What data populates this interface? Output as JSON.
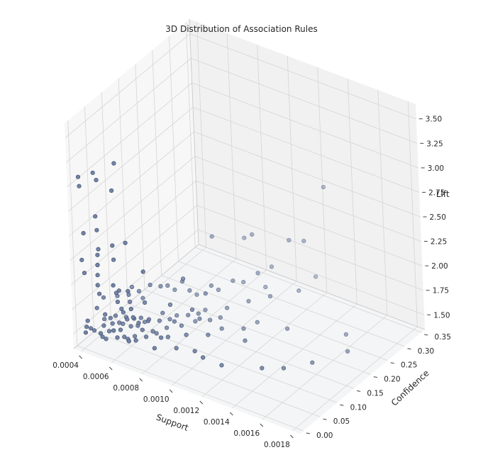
{
  "chart_data": {
    "type": "scatter",
    "title": "3D Distribution of Association Rules",
    "xlabel": "Support",
    "ylabel": "Confidence",
    "zlabel": "Lift",
    "xlim": [
      0.00035,
      0.00185
    ],
    "ylim": [
      -0.01,
      0.36
    ],
    "zlim": [
      1.35,
      3.65
    ],
    "xticks": [
      "0.0004",
      "0.0006",
      "0.0008",
      "0.0010",
      "0.0012",
      "0.0014",
      "0.0016",
      "0.0018"
    ],
    "yticks": [
      "0.00",
      "0.05",
      "0.10",
      "0.15",
      "0.20",
      "0.25",
      "0.30",
      "0.35"
    ],
    "zticks": [
      "1.50",
      "1.75",
      "2.00",
      "2.25",
      "2.50",
      "2.75",
      "3.00",
      "3.25",
      "3.50"
    ],
    "marker_color": "#6d7fa3",
    "points": [
      [
        0.0004,
        0.001,
        3.1
      ],
      [
        0.0004,
        0.003,
        3.0
      ],
      [
        0.0005,
        0.01,
        3.1
      ],
      [
        0.0005,
        0.001,
        3.2
      ],
      [
        0.0006,
        0.02,
        3.3
      ],
      [
        0.0006,
        0.01,
        3.05
      ],
      [
        0.0005,
        0.003,
        2.75
      ],
      [
        0.0005,
        0.006,
        2.6
      ],
      [
        0.0004,
        0.01,
        2.5
      ],
      [
        0.0005,
        0.008,
        2.4
      ],
      [
        0.0006,
        0.006,
        2.5
      ],
      [
        0.0006,
        0.008,
        2.35
      ],
      [
        0.0007,
        0.001,
        2.6
      ],
      [
        0.0004,
        0.002,
        2.25
      ],
      [
        0.0005,
        0.003,
        2.15
      ],
      [
        0.0005,
        0.004,
        2.25
      ],
      [
        0.0005,
        0.005,
        2.35
      ],
      [
        0.0006,
        0.004,
        2.1
      ],
      [
        0.0005,
        0.006,
        1.95
      ],
      [
        0.0005,
        0.002,
        2.05
      ],
      [
        0.0007,
        0.003,
        2.1
      ],
      [
        0.0008,
        0.006,
        2.35
      ],
      [
        0.0004,
        0.008,
        2.1
      ],
      [
        0.0006,
        0.012,
        2.0
      ],
      [
        0.0007,
        0.01,
        1.9
      ],
      [
        0.0006,
        0.015,
        1.9
      ],
      [
        0.0006,
        0.02,
        2.0
      ],
      [
        0.0007,
        0.015,
        1.8
      ],
      [
        0.0006,
        0.025,
        1.8
      ],
      [
        0.0007,
        0.03,
        1.7
      ],
      [
        0.0004,
        0.005,
        1.5
      ],
      [
        0.0004,
        0.008,
        1.55
      ],
      [
        0.0004,
        0.012,
        1.6
      ],
      [
        0.0004,
        0.02,
        1.5
      ],
      [
        0.0004,
        0.03,
        1.45
      ],
      [
        0.0005,
        0.005,
        1.55
      ],
      [
        0.0005,
        0.01,
        1.5
      ],
      [
        0.0005,
        0.015,
        1.6
      ],
      [
        0.0005,
        0.02,
        1.45
      ],
      [
        0.0005,
        0.03,
        1.5
      ],
      [
        0.0005,
        0.04,
        1.55
      ],
      [
        0.0005,
        0.05,
        1.6
      ],
      [
        0.0005,
        0.06,
        1.5
      ],
      [
        0.0006,
        0.01,
        1.55
      ],
      [
        0.0006,
        0.02,
        1.6
      ],
      [
        0.0006,
        0.03,
        1.5
      ],
      [
        0.0006,
        0.04,
        1.45
      ],
      [
        0.0006,
        0.05,
        1.55
      ],
      [
        0.0006,
        0.06,
        1.6
      ],
      [
        0.0006,
        0.07,
        1.5
      ],
      [
        0.0006,
        0.08,
        1.55
      ],
      [
        0.0007,
        0.02,
        1.55
      ],
      [
        0.0007,
        0.04,
        1.6
      ],
      [
        0.0007,
        0.05,
        1.5
      ],
      [
        0.0007,
        0.06,
        1.65
      ],
      [
        0.0007,
        0.07,
        1.5
      ],
      [
        0.0007,
        0.08,
        1.45
      ],
      [
        0.0007,
        0.09,
        1.55
      ],
      [
        0.0007,
        0.1,
        1.6
      ],
      [
        0.0008,
        0.03,
        1.5
      ],
      [
        0.0008,
        0.05,
        1.55
      ],
      [
        0.0008,
        0.07,
        1.5
      ],
      [
        0.0008,
        0.09,
        1.6
      ],
      [
        0.0008,
        0.11,
        1.5
      ],
      [
        0.0008,
        0.13,
        1.55
      ],
      [
        0.0009,
        0.05,
        1.5
      ],
      [
        0.0009,
        0.08,
        1.55
      ],
      [
        0.0009,
        0.12,
        1.6
      ],
      [
        0.0009,
        0.15,
        1.5
      ],
      [
        0.001,
        0.06,
        1.5
      ],
      [
        0.001,
        0.1,
        1.55
      ],
      [
        0.001,
        0.14,
        1.5
      ],
      [
        0.0011,
        0.04,
        1.55
      ],
      [
        0.0011,
        0.16,
        1.5
      ],
      [
        0.0012,
        0.05,
        1.5
      ],
      [
        0.0012,
        0.12,
        1.55
      ],
      [
        0.0013,
        0.2,
        1.5
      ],
      [
        0.0014,
        0.08,
        1.5
      ],
      [
        0.0015,
        0.1,
        1.5
      ],
      [
        0.0016,
        0.14,
        1.5
      ],
      [
        0.0016,
        0.24,
        1.5
      ],
      [
        0.0017,
        0.2,
        1.5
      ],
      [
        0.0006,
        0.03,
        1.75
      ],
      [
        0.0006,
        0.05,
        1.8
      ],
      [
        0.0007,
        0.05,
        1.85
      ],
      [
        0.0008,
        0.08,
        1.8
      ],
      [
        0.0009,
        0.1,
        1.75
      ],
      [
        0.0008,
        0.12,
        1.95
      ],
      [
        0.0009,
        0.14,
        1.8
      ],
      [
        0.001,
        0.22,
        1.55
      ],
      [
        0.0011,
        0.24,
        1.6
      ],
      [
        0.0012,
        0.28,
        1.6
      ],
      [
        0.0004,
        0.06,
        1.48
      ],
      [
        0.0005,
        0.07,
        1.46
      ],
      [
        0.0005,
        0.08,
        1.5
      ],
      [
        0.0006,
        0.09,
        1.48
      ],
      [
        0.0006,
        0.1,
        1.46
      ],
      [
        0.0007,
        0.12,
        1.48
      ],
      [
        0.0007,
        0.14,
        1.46
      ],
      [
        0.0008,
        0.16,
        1.48
      ],
      [
        0.0008,
        0.18,
        1.46
      ],
      [
        0.0009,
        0.2,
        1.48
      ],
      [
        0.0004,
        0.04,
        1.65
      ],
      [
        0.0004,
        0.06,
        1.7
      ],
      [
        0.0005,
        0.09,
        1.7
      ],
      [
        0.0005,
        0.12,
        1.65
      ],
      [
        0.0006,
        0.14,
        1.7
      ],
      [
        0.0006,
        0.16,
        1.65
      ],
      [
        0.0007,
        0.18,
        1.6
      ],
      [
        0.0008,
        0.2,
        1.65
      ],
      [
        0.0009,
        0.22,
        1.7
      ],
      [
        0.001,
        0.25,
        1.75
      ],
      [
        0.0011,
        0.3,
        2.0
      ],
      [
        0.0009,
        0.28,
        2.0
      ],
      [
        0.0012,
        0.3,
        2.05
      ],
      [
        0.0013,
        0.32,
        2.6
      ],
      [
        0.0008,
        0.3,
        1.85
      ],
      [
        0.0007,
        0.25,
        1.95
      ],
      [
        0.001,
        0.29,
        1.7
      ],
      [
        0.0012,
        0.33,
        1.6
      ],
      [
        0.0005,
        0.1,
        1.75
      ],
      [
        0.0006,
        0.11,
        1.8
      ],
      [
        0.0007,
        0.16,
        1.75
      ],
      [
        0.0004,
        0.1,
        1.6
      ],
      [
        0.0005,
        0.13,
        1.55
      ],
      [
        0.0006,
        0.18,
        1.55
      ],
      [
        0.0007,
        0.2,
        1.5
      ],
      [
        0.0008,
        0.22,
        1.55
      ],
      [
        0.0009,
        0.25,
        1.6
      ],
      [
        0.001,
        0.27,
        1.55
      ],
      [
        0.0005,
        0.02,
        1.7
      ],
      [
        0.0006,
        0.0,
        1.65
      ],
      [
        0.0007,
        0.0,
        1.6
      ],
      [
        0.0006,
        0.04,
        1.65
      ],
      [
        0.0005,
        0.035,
        1.62
      ],
      [
        0.0006,
        0.06,
        1.42
      ],
      [
        0.0007,
        0.11,
        1.42
      ],
      [
        0.0008,
        0.15,
        1.43
      ],
      [
        0.0009,
        0.18,
        1.44
      ],
      [
        0.0011,
        0.2,
        1.45
      ]
    ]
  }
}
